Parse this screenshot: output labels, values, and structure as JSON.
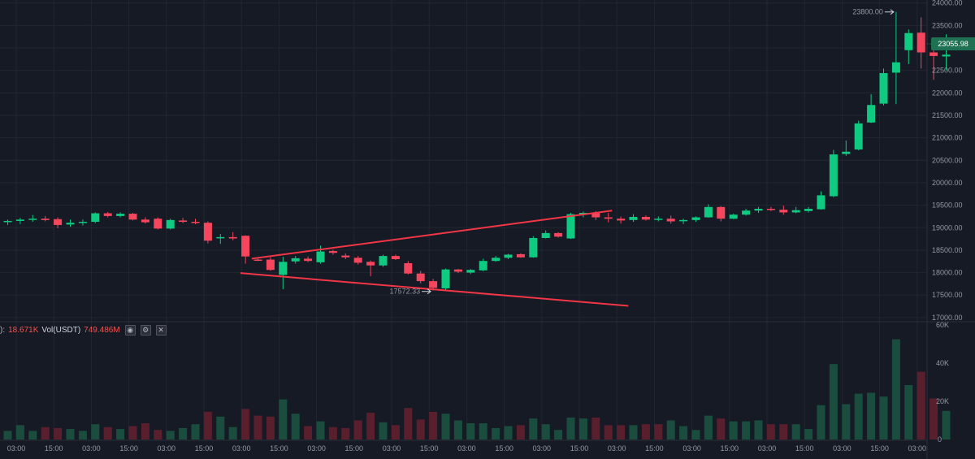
{
  "chart_data": [
    {
      "type": "candlestick",
      "series": [
        {
          "name": "Price"
        }
      ],
      "y_ticks": [
        "17000.00",
        "17500.00",
        "18000.00",
        "18500.00",
        "19000.00",
        "19500.00",
        "20000.00",
        "20500.00",
        "21000.00",
        "21500.00",
        "22000.00",
        "22500.00",
        "23000.00",
        "23500.00",
        "24000.00"
      ],
      "ylim": [
        16980,
        24030
      ],
      "x_tick_labels": [
        "03:00",
        "15:00",
        "03:00",
        "15:00",
        "03:00",
        "15:00",
        "03:00",
        "15:00",
        "03:00",
        "15:00",
        "03:00",
        "15:00",
        "03:00",
        "15:00",
        "03:00",
        "15:00",
        "03:00",
        "15:00",
        "03:00",
        "15:00",
        "03:00",
        "15:00",
        "03:00",
        "15:00",
        "03:00"
      ],
      "candles": [
        {
          "o": 19130,
          "h": 19180,
          "l": 19060,
          "c": 19150
        },
        {
          "o": 19150,
          "h": 19220,
          "l": 19080,
          "c": 19180
        },
        {
          "o": 19180,
          "h": 19280,
          "l": 19130,
          "c": 19200
        },
        {
          "o": 19200,
          "h": 19260,
          "l": 19140,
          "c": 19170
        },
        {
          "o": 19190,
          "h": 19230,
          "l": 18990,
          "c": 19060
        },
        {
          "o": 19070,
          "h": 19180,
          "l": 19020,
          "c": 19110
        },
        {
          "o": 19110,
          "h": 19180,
          "l": 19050,
          "c": 19130
        },
        {
          "o": 19130,
          "h": 19340,
          "l": 19100,
          "c": 19320
        },
        {
          "o": 19320,
          "h": 19350,
          "l": 19230,
          "c": 19260
        },
        {
          "o": 19260,
          "h": 19340,
          "l": 19230,
          "c": 19310
        },
        {
          "o": 19310,
          "h": 19330,
          "l": 19160,
          "c": 19180
        },
        {
          "o": 19180,
          "h": 19230,
          "l": 19090,
          "c": 19120
        },
        {
          "o": 19200,
          "h": 19230,
          "l": 18960,
          "c": 18980
        },
        {
          "o": 18980,
          "h": 19200,
          "l": 18960,
          "c": 19170
        },
        {
          "o": 19160,
          "h": 19220,
          "l": 19100,
          "c": 19130
        },
        {
          "o": 19130,
          "h": 19200,
          "l": 19080,
          "c": 19110
        },
        {
          "o": 19110,
          "h": 19140,
          "l": 18650,
          "c": 18710
        },
        {
          "o": 18780,
          "h": 18860,
          "l": 18640,
          "c": 18790
        },
        {
          "o": 18790,
          "h": 18900,
          "l": 18720,
          "c": 18760
        },
        {
          "o": 18820,
          "h": 18830,
          "l": 18200,
          "c": 18360
        },
        {
          "o": 18290,
          "h": 18330,
          "l": 18260,
          "c": 18280
        },
        {
          "o": 18290,
          "h": 18340,
          "l": 18040,
          "c": 18060
        },
        {
          "o": 17950,
          "h": 18350,
          "l": 17630,
          "c": 18240
        },
        {
          "o": 18250,
          "h": 18370,
          "l": 18200,
          "c": 18320
        },
        {
          "o": 18310,
          "h": 18360,
          "l": 18230,
          "c": 18260
        },
        {
          "o": 18230,
          "h": 18600,
          "l": 18200,
          "c": 18470
        },
        {
          "o": 18480,
          "h": 18510,
          "l": 18400,
          "c": 18440
        },
        {
          "o": 18380,
          "h": 18430,
          "l": 18300,
          "c": 18340
        },
        {
          "o": 18330,
          "h": 18370,
          "l": 18180,
          "c": 18220
        },
        {
          "o": 18240,
          "h": 18270,
          "l": 17920,
          "c": 18160
        },
        {
          "o": 18160,
          "h": 18400,
          "l": 18130,
          "c": 18370
        },
        {
          "o": 18370,
          "h": 18400,
          "l": 18280,
          "c": 18300
        },
        {
          "o": 18210,
          "h": 18260,
          "l": 17960,
          "c": 17980
        },
        {
          "o": 17980,
          "h": 18040,
          "l": 17760,
          "c": 17810
        },
        {
          "o": 17810,
          "h": 17860,
          "l": 17600,
          "c": 17660
        },
        {
          "o": 17650,
          "h": 18090,
          "l": 17600,
          "c": 18070
        },
        {
          "o": 18070,
          "h": 18080,
          "l": 17990,
          "c": 18020
        },
        {
          "o": 18000,
          "h": 18080,
          "l": 17970,
          "c": 18060
        },
        {
          "o": 18050,
          "h": 18310,
          "l": 18030,
          "c": 18260
        },
        {
          "o": 18260,
          "h": 18370,
          "l": 18240,
          "c": 18330
        },
        {
          "o": 18330,
          "h": 18420,
          "l": 18300,
          "c": 18400
        },
        {
          "o": 18410,
          "h": 18430,
          "l": 18330,
          "c": 18340
        },
        {
          "o": 18340,
          "h": 18810,
          "l": 18330,
          "c": 18770
        },
        {
          "o": 18770,
          "h": 18940,
          "l": 18760,
          "c": 18880
        },
        {
          "o": 18880,
          "h": 18900,
          "l": 18780,
          "c": 18800
        },
        {
          "o": 18760,
          "h": 19330,
          "l": 18750,
          "c": 19300
        },
        {
          "o": 19300,
          "h": 19360,
          "l": 19230,
          "c": 19330
        },
        {
          "o": 19330,
          "h": 19370,
          "l": 19170,
          "c": 19230
        },
        {
          "o": 19230,
          "h": 19330,
          "l": 19120,
          "c": 19200
        },
        {
          "o": 19200,
          "h": 19250,
          "l": 19090,
          "c": 19160
        },
        {
          "o": 19170,
          "h": 19300,
          "l": 19130,
          "c": 19240
        },
        {
          "o": 19240,
          "h": 19270,
          "l": 19160,
          "c": 19180
        },
        {
          "o": 19180,
          "h": 19250,
          "l": 19140,
          "c": 19200
        },
        {
          "o": 19200,
          "h": 19270,
          "l": 19090,
          "c": 19140
        },
        {
          "o": 19150,
          "h": 19200,
          "l": 19080,
          "c": 19170
        },
        {
          "o": 19170,
          "h": 19250,
          "l": 19130,
          "c": 19230
        },
        {
          "o": 19230,
          "h": 19520,
          "l": 19220,
          "c": 19460
        },
        {
          "o": 19460,
          "h": 19480,
          "l": 19140,
          "c": 19200
        },
        {
          "o": 19200,
          "h": 19310,
          "l": 19190,
          "c": 19290
        },
        {
          "o": 19290,
          "h": 19420,
          "l": 19270,
          "c": 19380
        },
        {
          "o": 19380,
          "h": 19460,
          "l": 19330,
          "c": 19420
        },
        {
          "o": 19420,
          "h": 19460,
          "l": 19370,
          "c": 19400
        },
        {
          "o": 19400,
          "h": 19490,
          "l": 19290,
          "c": 19340
        },
        {
          "o": 19340,
          "h": 19460,
          "l": 19320,
          "c": 19390
        },
        {
          "o": 19370,
          "h": 19460,
          "l": 19340,
          "c": 19420
        },
        {
          "o": 19410,
          "h": 19810,
          "l": 19400,
          "c": 19720
        },
        {
          "o": 19700,
          "h": 20730,
          "l": 19680,
          "c": 20630
        },
        {
          "o": 20640,
          "h": 20940,
          "l": 20600,
          "c": 20690
        },
        {
          "o": 20740,
          "h": 21380,
          "l": 20720,
          "c": 21320
        },
        {
          "o": 21340,
          "h": 21970,
          "l": 21330,
          "c": 21730
        },
        {
          "o": 21760,
          "h": 22540,
          "l": 21720,
          "c": 22440
        },
        {
          "o": 22450,
          "h": 23800,
          "l": 21750,
          "c": 22680
        },
        {
          "o": 22950,
          "h": 23410,
          "l": 22640,
          "c": 23330
        },
        {
          "o": 23340,
          "h": 23680,
          "l": 22540,
          "c": 22900
        },
        {
          "o": 22900,
          "h": 23180,
          "l": 22290,
          "c": 22820
        },
        {
          "o": 22810,
          "h": 23300,
          "l": 22500,
          "c": 22850
        }
      ],
      "volume_ticks": [
        "0",
        "20K",
        "40K",
        "60K"
      ],
      "volume_ylim": [
        0,
        60000
      ],
      "volume": [
        {
          "v": 4500,
          "up": true
        },
        {
          "v": 7500,
          "up": true
        },
        {
          "v": 4500,
          "up": true
        },
        {
          "v": 6500,
          "up": false
        },
        {
          "v": 6000,
          "up": false
        },
        {
          "v": 5500,
          "up": true
        },
        {
          "v": 4500,
          "up": true
        },
        {
          "v": 8000,
          "up": true
        },
        {
          "v": 6500,
          "up": false
        },
        {
          "v": 5500,
          "up": true
        },
        {
          "v": 7000,
          "up": false
        },
        {
          "v": 8500,
          "up": false
        },
        {
          "v": 5000,
          "up": false
        },
        {
          "v": 4500,
          "up": true
        },
        {
          "v": 6000,
          "up": true
        },
        {
          "v": 8000,
          "up": true
        },
        {
          "v": 14500,
          "up": false
        },
        {
          "v": 12000,
          "up": true
        },
        {
          "v": 6500,
          "up": true
        },
        {
          "v": 16000,
          "up": false
        },
        {
          "v": 12500,
          "up": false
        },
        {
          "v": 12000,
          "up": false
        },
        {
          "v": 21000,
          "up": true
        },
        {
          "v": 13500,
          "up": true
        },
        {
          "v": 7000,
          "up": false
        },
        {
          "v": 9500,
          "up": true
        },
        {
          "v": 6500,
          "up": false
        },
        {
          "v": 6000,
          "up": false
        },
        {
          "v": 10000,
          "up": false
        },
        {
          "v": 14000,
          "up": false
        },
        {
          "v": 9000,
          "up": true
        },
        {
          "v": 7500,
          "up": false
        },
        {
          "v": 16500,
          "up": false
        },
        {
          "v": 10500,
          "up": false
        },
        {
          "v": 14500,
          "up": false
        },
        {
          "v": 13500,
          "up": true
        },
        {
          "v": 10000,
          "up": true
        },
        {
          "v": 8500,
          "up": true
        },
        {
          "v": 8500,
          "up": true
        },
        {
          "v": 6000,
          "up": true
        },
        {
          "v": 7000,
          "up": true
        },
        {
          "v": 7500,
          "up": false
        },
        {
          "v": 11000,
          "up": true
        },
        {
          "v": 8000,
          "up": true
        },
        {
          "v": 5000,
          "up": true
        },
        {
          "v": 11500,
          "up": true
        },
        {
          "v": 11000,
          "up": true
        },
        {
          "v": 11500,
          "up": false
        },
        {
          "v": 7500,
          "up": false
        },
        {
          "v": 7500,
          "up": false
        },
        {
          "v": 7500,
          "up": true
        },
        {
          "v": 8000,
          "up": false
        },
        {
          "v": 8000,
          "up": false
        },
        {
          "v": 10000,
          "up": true
        },
        {
          "v": 7000,
          "up": true
        },
        {
          "v": 5000,
          "up": true
        },
        {
          "v": 12500,
          "up": true
        },
        {
          "v": 11000,
          "up": false
        },
        {
          "v": 9500,
          "up": true
        },
        {
          "v": 9500,
          "up": true
        },
        {
          "v": 10000,
          "up": true
        },
        {
          "v": 8000,
          "up": false
        },
        {
          "v": 8000,
          "up": false
        },
        {
          "v": 8000,
          "up": true
        },
        {
          "v": 5500,
          "up": true
        },
        {
          "v": 18000,
          "up": true
        },
        {
          "v": 39500,
          "up": true
        },
        {
          "v": 18500,
          "up": true
        },
        {
          "v": 24000,
          "up": true
        },
        {
          "v": 24500,
          "up": true
        },
        {
          "v": 22500,
          "up": true
        },
        {
          "v": 52500,
          "up": true
        },
        {
          "v": 28500,
          "up": true
        },
        {
          "v": 35500,
          "up": false
        },
        {
          "v": 21500,
          "up": false
        },
        {
          "v": 15000,
          "up": true
        }
      ],
      "trendlines": [
        {
          "from": {
            "bar": 19.5,
            "price": 18310
          },
          "to": {
            "bar": 48.3,
            "price": 19380
          }
        },
        {
          "from": {
            "bar": 18.6,
            "price": 17990
          },
          "to": {
            "bar": 49.6,
            "price": 17260
          }
        }
      ],
      "high_label": "23800.00",
      "low_label": "17572.33",
      "last_price_label": "23055.98",
      "volume_legend": {
        "value1": "18.671K",
        "label": "Vol(USDT)",
        "value2": "749.486M"
      },
      "colors": {
        "up": "#26a69a",
        "up_body": "#0ecb81",
        "down": "#f6465d",
        "up_vol": "#1b4d3e",
        "down_vol": "#5a1f2d",
        "trend": "#f23645",
        "last_price": "#1e7153",
        "background": "#161a25",
        "grid": "#222631"
      }
    }
  ]
}
